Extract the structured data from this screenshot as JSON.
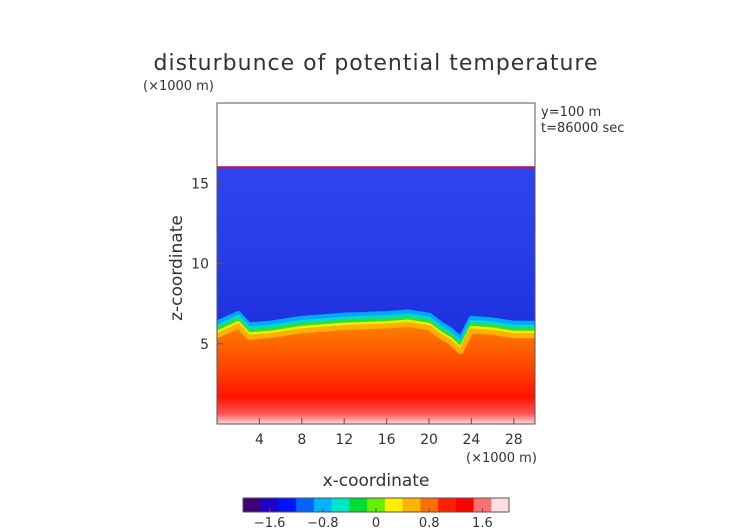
{
  "chart_data": {
    "type": "heatmap",
    "title": "disturbunce of potential temperature",
    "xlabel": "x-coordinate",
    "ylabel": "z-coordinate",
    "x_unit": "(×1000 m)",
    "y_unit": "(×1000 m)",
    "annotations": [
      "y=100 m",
      "t=86000 sec"
    ],
    "xlim": [
      0,
      30
    ],
    "ylim": [
      0,
      20
    ],
    "x_ticks": [
      4,
      8,
      12,
      16,
      20,
      24,
      28
    ],
    "y_ticks": [
      5,
      10,
      15
    ],
    "colorbar": {
      "range": [
        -2.0,
        2.0
      ],
      "tick_values": [
        -1.6,
        -0.8,
        0,
        0.8,
        1.6
      ],
      "tick_labels": [
        "−1.6",
        "−0.8",
        "0",
        "0.8",
        "1.6"
      ],
      "colors": [
        "#3c0078",
        "#1e00c8",
        "#0014ff",
        "#0064ff",
        "#00b4ff",
        "#00e6c8",
        "#00dc32",
        "#64f000",
        "#fff000",
        "#ffb400",
        "#ff6e00",
        "#ff2000",
        "#ff0000",
        "#ff7070",
        "#ffe0e0"
      ]
    },
    "fields": {
      "top_of_data_km": 16,
      "interface_height_km": [
        6.0,
        6.6,
        5.9,
        6.0,
        6.3,
        6.5,
        6.6,
        6.7,
        6.5,
        6.0,
        5.6,
        5.0,
        6.3,
        6.2,
        6.0,
        6.0
      ],
      "interface_x_km": [
        0,
        2,
        3,
        5,
        8,
        12,
        16,
        18,
        20,
        21,
        22,
        23,
        24,
        26,
        28,
        30
      ],
      "upper_layer_value": -1.2,
      "lower_layer_value_mid": 1.1,
      "lower_layer_value_surface": 2.0
    }
  }
}
